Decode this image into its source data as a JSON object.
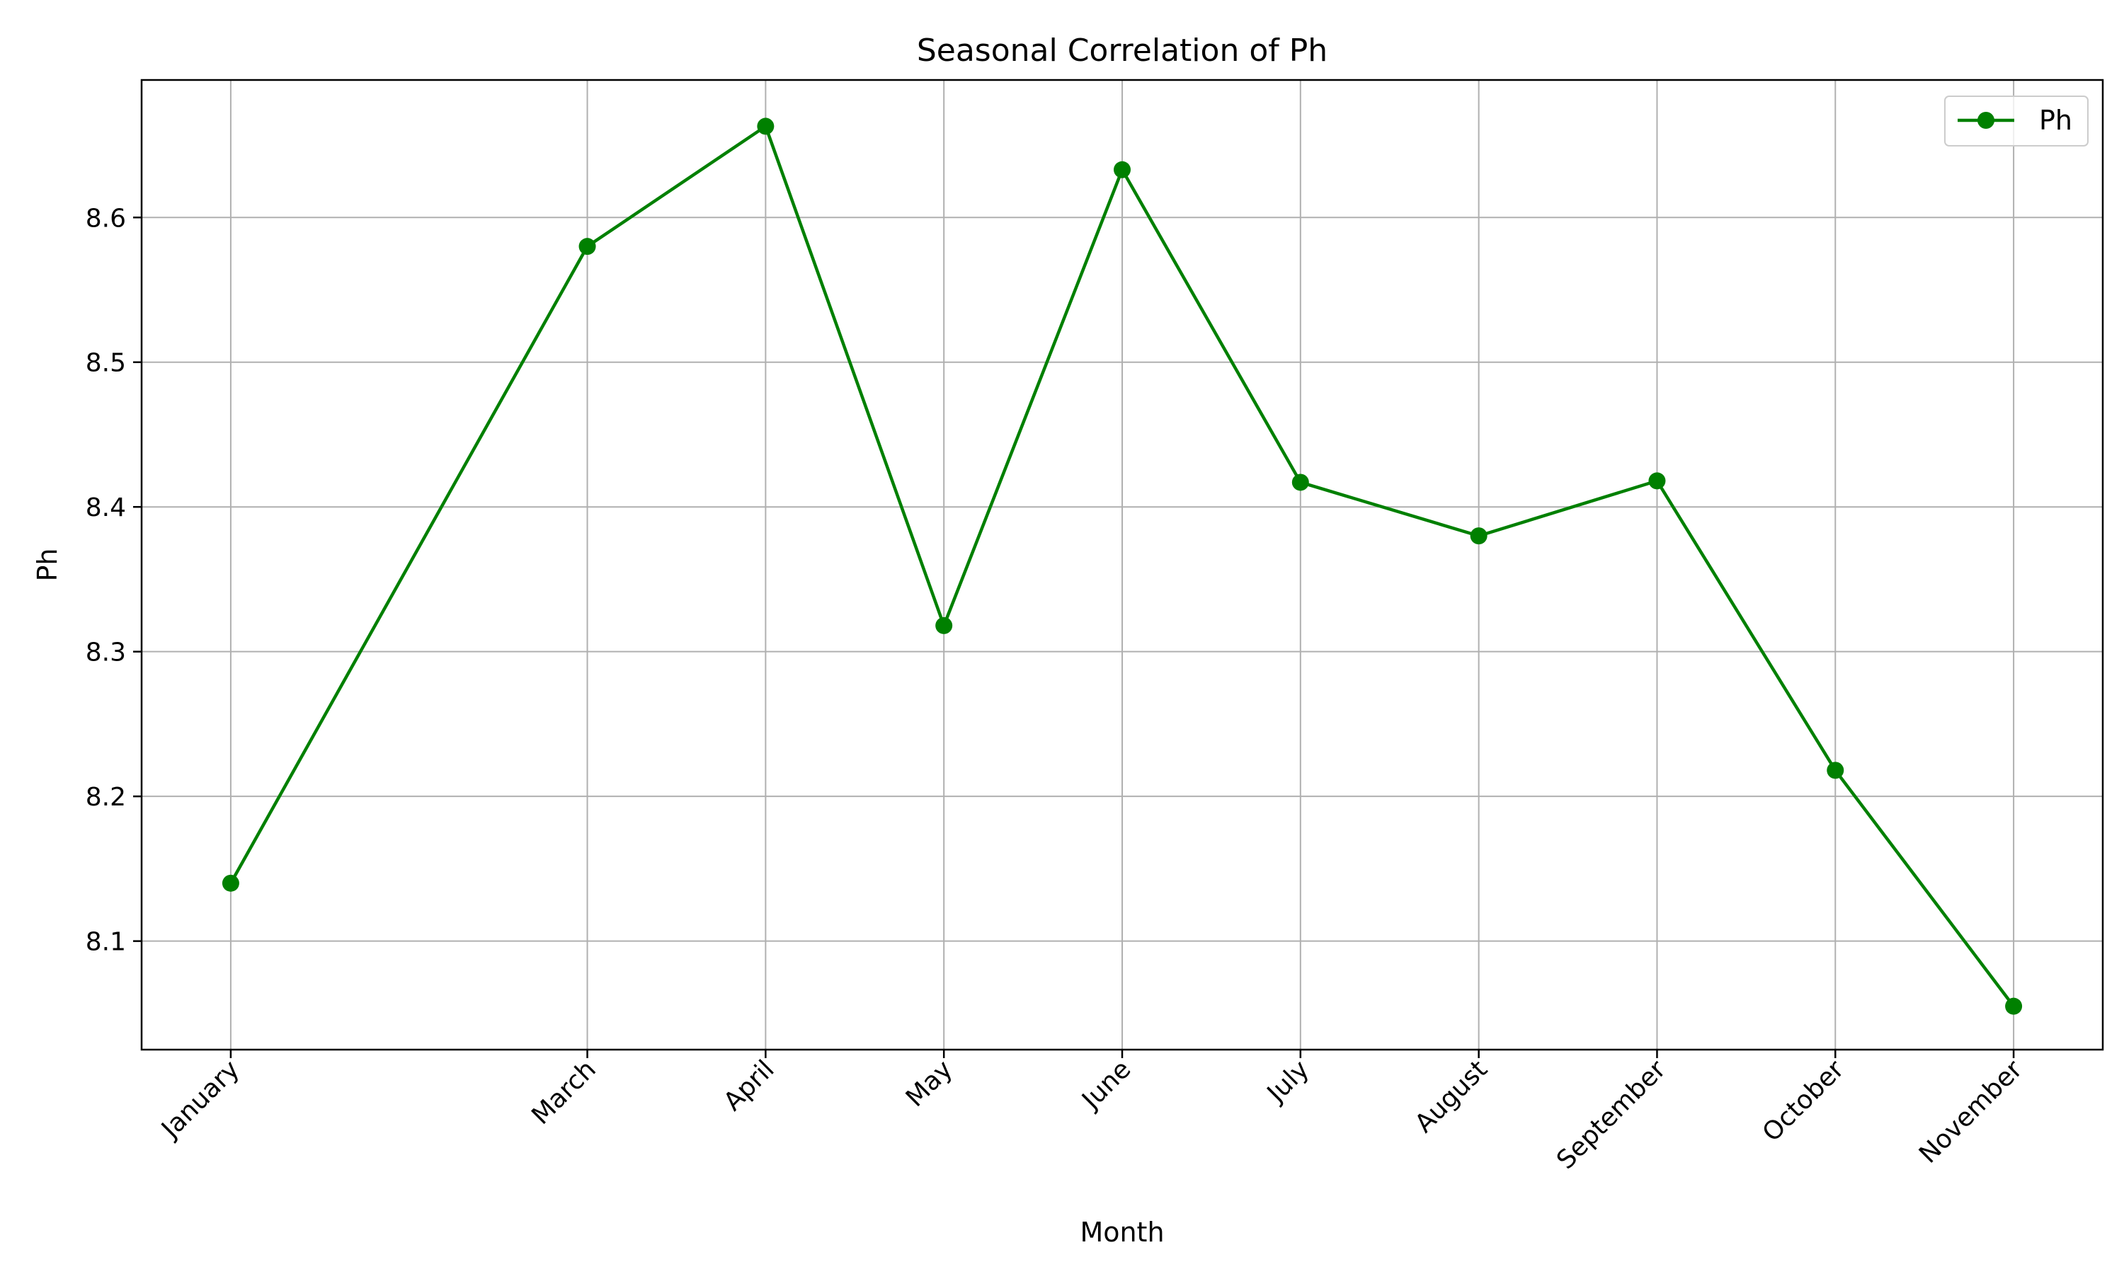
{
  "chart_data": {
    "type": "line",
    "title": "Seasonal Correlation of Ph",
    "xlabel": "Month",
    "ylabel": "Ph",
    "x": [
      1,
      3,
      4,
      5,
      6,
      7,
      8,
      9,
      10,
      11
    ],
    "x_tick_labels": [
      "January",
      "March",
      "April",
      "May",
      "June",
      "July",
      "August",
      "September",
      "October",
      "November"
    ],
    "xlim": [
      0.5,
      11.5
    ],
    "y_ticks": [
      8.1,
      8.2,
      8.3,
      8.4,
      8.5,
      8.6
    ],
    "ylim": [
      8.025,
      8.695
    ],
    "grid": true,
    "legend_position": "top-right",
    "series": [
      {
        "name": "Ph",
        "color": "#008000",
        "marker": "circle",
        "values": [
          8.14,
          8.58,
          8.663,
          8.318,
          8.633,
          8.417,
          8.38,
          8.418,
          8.218,
          8.055
        ]
      }
    ]
  }
}
